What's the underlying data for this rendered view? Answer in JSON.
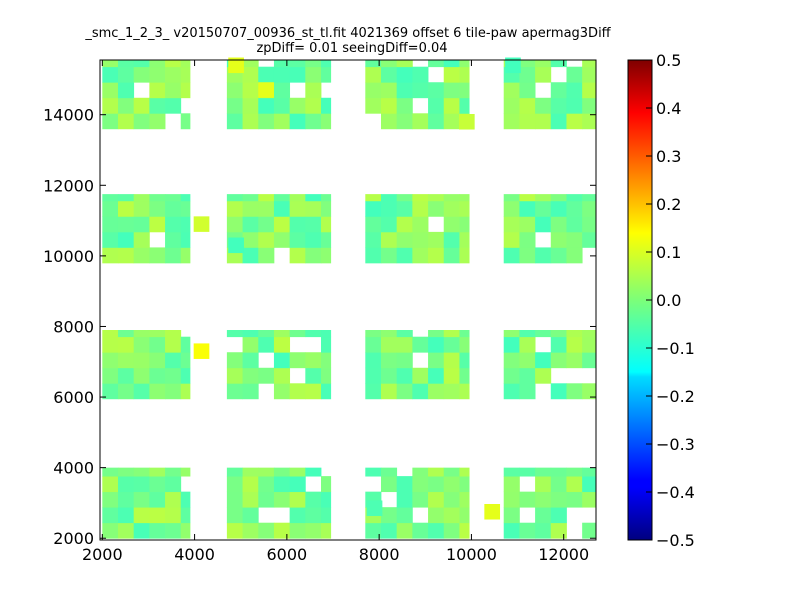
{
  "chart_data": {
    "type": "heatmap",
    "title": "_smc_1_2_3_ v20150707_00936_st_tl.fit 4021369 offset 6 tile-paw apermag3Diff",
    "subtitle": "zpDiff= 0.01 seeingDiff=0.04",
    "xlim": [
      1950,
      12700
    ],
    "ylim": [
      1950,
      15550
    ],
    "x_ticks": [
      "2000",
      "4000",
      "6000",
      "8000",
      "10000",
      "12000"
    ],
    "y_ticks": [
      "2000",
      "4000",
      "6000",
      "8000",
      "10000",
      "12000",
      "14000"
    ],
    "grid": false,
    "colorbar": {
      "colormap": "jet",
      "range": [
        -0.5,
        0.5
      ],
      "ticks": [
        "0.5",
        "0.4",
        "0.3",
        "0.2",
        "0.1",
        "0.0",
        "−0.1",
        "−0.2",
        "−0.3",
        "−0.4",
        "−0.5"
      ]
    },
    "cell_size": [
      340,
      440
    ],
    "row_bands": [
      {
        "y_start": 2000,
        "y_end": 4000
      },
      {
        "y_start": 5950,
        "y_end": 7900
      },
      {
        "y_start": 9800,
        "y_end": 11750
      },
      {
        "y_start": 13600,
        "y_end": 15550
      }
    ],
    "column_groups": [
      {
        "x_start": 2000,
        "x_end": 3900
      },
      {
        "x_start": 4700,
        "x_end": 6950
      },
      {
        "x_start": 7700,
        "x_end": 9950
      },
      {
        "x_start": 10700,
        "x_end": 12700
      }
    ],
    "typical_value_range": [
      -0.06,
      0.06
    ],
    "notable_cells": [
      {
        "x": 4150,
        "y": 7300,
        "value": 0.12
      },
      {
        "x": 4150,
        "y": 10900,
        "value": 0.08
      },
      {
        "x": 4900,
        "y": 15400,
        "value": 0.1
      },
      {
        "x": 5550,
        "y": 14700,
        "value": 0.1
      },
      {
        "x": 10450,
        "y": 2750,
        "value": 0.1
      },
      {
        "x": 4900,
        "y": 10300,
        "value": -0.06
      },
      {
        "x": 10900,
        "y": 15400,
        "value": -0.06
      },
      {
        "x": 9900,
        "y": 13800,
        "value": 0.07
      },
      {
        "x": 7900,
        "y": 2850,
        "value": -0.05
      }
    ]
  },
  "colors": {
    "frame": "#000000",
    "background": "#ffffff"
  }
}
